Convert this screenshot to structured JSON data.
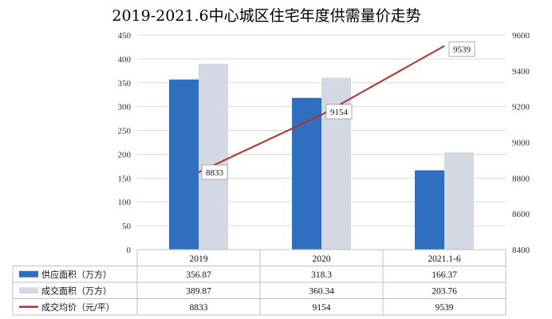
{
  "chart_data": {
    "type": "bar",
    "title": "2019-2021.6中心城区住宅年度供需量价走势",
    "categories": [
      "2019",
      "2020",
      "2021.1-6"
    ],
    "series": [
      {
        "name": "供应面积（万方）",
        "values": [
          356.87,
          318.3,
          166.37
        ],
        "labels": [
          "356.87",
          "318.3",
          "166.37"
        ],
        "color": "#2e6fbf",
        "axis": "left",
        "kind": "bar"
      },
      {
        "name": "成交面积（万方）",
        "values": [
          389.87,
          360.34,
          203.76
        ],
        "labels": [
          "389.87",
          "360.34",
          "203.76"
        ],
        "color": "#d3d8e3",
        "axis": "left",
        "kind": "bar"
      },
      {
        "name": "成交均价（元/平）",
        "values": [
          8833,
          9154,
          9539
        ],
        "labels": [
          "8833",
          "9154",
          "9539"
        ],
        "color": "#b5312c",
        "axis": "right",
        "kind": "line"
      }
    ],
    "ylim": [
      0,
      450
    ],
    "yticks": [
      "0",
      "50",
      "100",
      "150",
      "200",
      "250",
      "300",
      "350",
      "400",
      "450"
    ],
    "y2lim": [
      8400,
      9600
    ],
    "y2ticks": [
      "8400",
      "8600",
      "8800",
      "9000",
      "9200",
      "9400",
      "9600"
    ],
    "grid": true,
    "legend": "table-bottom"
  }
}
